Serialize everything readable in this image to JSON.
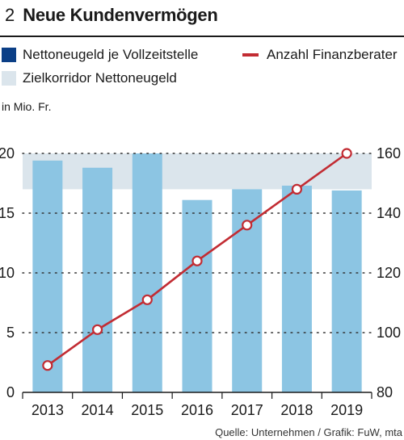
{
  "header": {
    "number": "2",
    "title": "Neue Kundenvermögen"
  },
  "legend": {
    "bars": "Nettoneugeld je Vollzeitstelle",
    "line": "Anzahl Finanzberater",
    "band": "Zielkorridor Nettoneugeld"
  },
  "unit_label": "in Mio. Fr.",
  "source": "Quelle: Unternehmen  / Grafik: FuW, mta",
  "colors": {
    "bar": "#8cc5e3",
    "band": "#dbe5ec",
    "line": "#c22c33",
    "legend_bar": "#0b3f86"
  },
  "chart_data": {
    "type": "bar",
    "categories": [
      "2013",
      "2014",
      "2015",
      "2016",
      "2017",
      "2018",
      "2019"
    ],
    "series": [
      {
        "name": "Nettoneugeld je Vollzeitstelle",
        "type": "bar",
        "axis": "left",
        "values": [
          19.4,
          18.8,
          20.0,
          16.1,
          17.0,
          17.3,
          16.9
        ]
      },
      {
        "name": "Anzahl Finanzberater",
        "type": "line",
        "axis": "right",
        "values": [
          89,
          101,
          111,
          124,
          136,
          148,
          160
        ]
      }
    ],
    "band": {
      "name": "Zielkorridor Nettoneugeld",
      "range": [
        17,
        20
      ]
    },
    "ylim": [
      0,
      20
    ],
    "yticks": [
      0,
      5,
      10,
      15,
      20
    ],
    "y2lim": [
      80,
      160
    ],
    "y2ticks": [
      80,
      100,
      120,
      140,
      160
    ],
    "ylabel": "in Mio. Fr.",
    "grid": "dotted horizontal"
  }
}
